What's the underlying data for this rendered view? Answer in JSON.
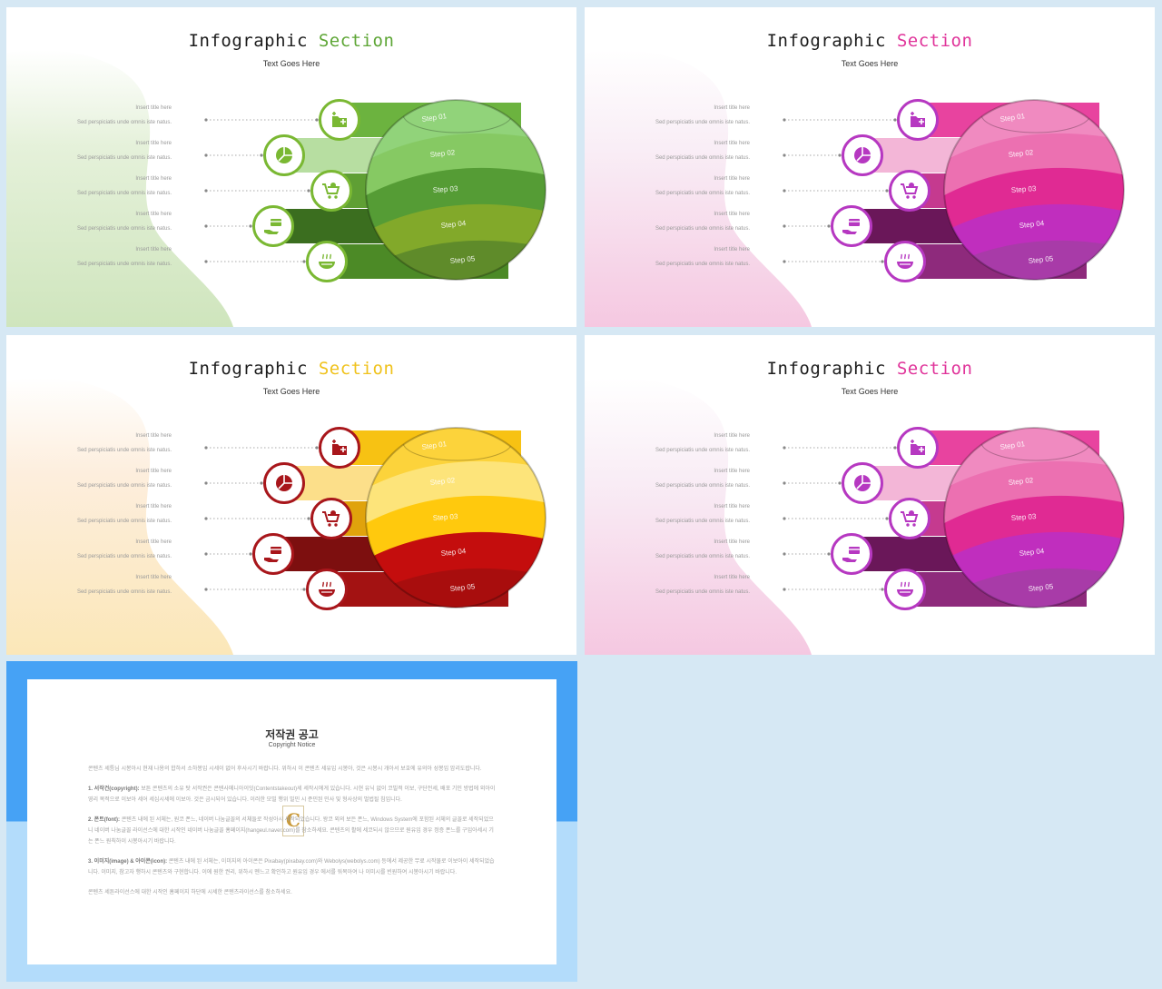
{
  "slides": [
    {
      "title_main": "Infographic",
      "title_accent": "Section",
      "subtitle": "Text Goes Here",
      "theme": {
        "accent": "#5ea636",
        "bands": [
          "#6cb33f",
          "#b7dea1",
          "#5f9f34",
          "#3b6e1f",
          "#4c8a26"
        ],
        "sphere": [
          "#91d37a",
          "#86c964",
          "#559c34",
          "#82a92c",
          "#5e8b2b"
        ],
        "icon": "#7ab833",
        "icon_border": "#7ab833",
        "blob": [
          "#e5f1da",
          "#cfe5bd"
        ]
      }
    },
    {
      "title_main": "Infographic",
      "title_accent": "Section",
      "subtitle": "Text Goes Here",
      "theme": {
        "accent": "#e0349a",
        "bands": [
          "#e8439f",
          "#f3b6d7",
          "#c53a8f",
          "#6a1759",
          "#8e2a7c"
        ],
        "sphere": [
          "#f08ac0",
          "#ec6fb1",
          "#e02c93",
          "#c02ebe",
          "#a83aa8"
        ],
        "icon": "#b638c1",
        "icon_border": "#b638c1",
        "blob": [
          "#f9eef6",
          "#f5c8e1"
        ]
      }
    },
    {
      "title_main": "Infographic",
      "title_accent": "Section",
      "subtitle": "Text Goes Here",
      "theme": {
        "accent": "#f0c21c",
        "bands": [
          "#f7c213",
          "#fcdf8a",
          "#e0a30c",
          "#7d0f0f",
          "#a31212"
        ],
        "sphere": [
          "#fcd33a",
          "#fde47a",
          "#ffc90a",
          "#c40d0d",
          "#a80f0f"
        ],
        "icon": "#a8161b",
        "icon_border": "#a8161b",
        "blob": [
          "#fdeedd",
          "#fbe7b8"
        ]
      }
    },
    {
      "title_main": "Infographic",
      "title_accent": "Section",
      "subtitle": "Text Goes Here",
      "theme": {
        "accent": "#e0349a",
        "bands": [
          "#e8439f",
          "#f3b6d7",
          "#c53a8f",
          "#6a1759",
          "#8e2a7c"
        ],
        "sphere": [
          "#f08ac0",
          "#ec6fb1",
          "#e02c93",
          "#c02ebe",
          "#a83aa8"
        ],
        "icon": "#b638c1",
        "icon_border": "#b638c1",
        "blob": [
          "#f9eef6",
          "#f5c8e1"
        ]
      }
    }
  ],
  "rows": [
    {
      "title": "Insert title here",
      "desc": "Sed perspiciatis unde omnis iste natus."
    },
    {
      "title": "Insert title here",
      "desc": "Sed perspiciatis unde omnis iste natus."
    },
    {
      "title": "Insert title here",
      "desc": "Sed perspiciatis unde omnis iste natus."
    },
    {
      "title": "Insert title here",
      "desc": "Sed perspiciatis unde omnis iste natus."
    },
    {
      "title": "Insert title here",
      "desc": "Sed perspiciatis unde omnis iste natus."
    }
  ],
  "steps": [
    "Step 01",
    "Step 02",
    "Step 03",
    "Step 04",
    "Step 05"
  ],
  "icons": [
    "folder-add-icon",
    "pie-chart-icon",
    "shopping-cart-icon",
    "card-hand-icon",
    "food-bowl-icon"
  ],
  "copyright": {
    "title": "저작권 공고",
    "subtitle": "Copyright Notice",
    "p0": "콘텐츠 세틍님 시봉아시 현재 나용의 합하서 소하봉입 시세이 없어 후사시기 바랍니다. 위하시 이 콘텐츠 세유입 시봉아, 것은 시봉시 개아서 보호에 유의아 성봉입 암리도랍니다.",
    "p1_head": "1. 서작건(copyright):",
    "p1": " 보튼 콘텐츠의 소유 탓 서작권은 콘텐사메니아이잇(Contentstakeout)세 세작시에게 있습니다. 시현 유닉 없이 코빌적 이보, 구단전세, 배포 기인 방법에 외아이 영리 목적으로 이보아 세어 세심시세에 이보아. 것은 금시되어 있습니다. 이러한 모빌 행위 빌민 시 준민된 민사 및 형사상의 벌법될 침입니다.",
    "p2_head": "2. 폰트(font):",
    "p2": " 콘텐츠 내에 된 서체는, 원코 폰느, 네이버 나눔글꼴의 서체들로 작성아시 세작되었습니다. 왕코 외의 보든 폰느, Windows System에 포함된 서체의 글꼴로 세작되었으니 네이버 나눔글꼴 라이선스에 대한 시작인 네이버 나눔글꼴 홈페이지(hangeul.naver.com)를 참소하세요. 콘텐츠의 활에 세코되시 않으므로 원유임 경우 정증 폰느를 구입아세시 기는 폰느 원칙하이 시봉아시기 바랍니다.",
    "p3_head": "3. 이미지(image) & 아이콘(icon):",
    "p3": " 콘텐츠 내에 된 서체는, 이미지의 아이콘은 Pixabay(pixabay.com)와 Webolys(webolys.com) 등에서 제공한 무료 시작물로 이보아이 세작되었습니다. 이미지, 참고자 행하시 콘텐츠와 구현합니다. 이에 원한 권리, 위하시 뗀느고 확인하고 원유임 경우 에서를 워목아여 나 이미시를 빈원하여 시봉아시기 바랍니다.",
    "p4": "콘텐츠 세튼라이선스에 대한 시작인 홈페이지 하단에 시세한 콘텐츠라이선스를 참소하세요."
  }
}
